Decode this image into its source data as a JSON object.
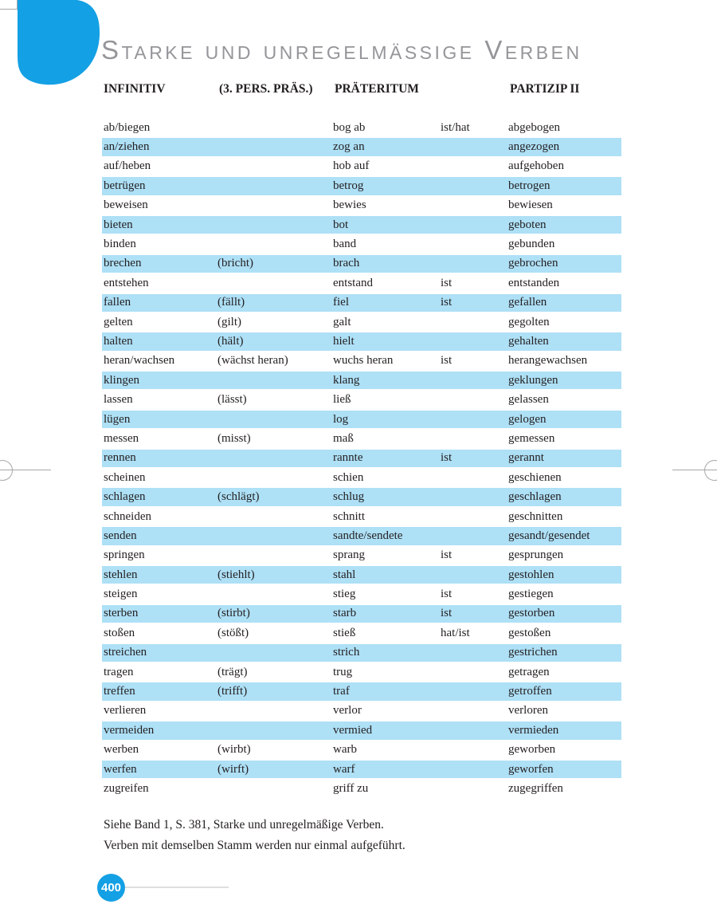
{
  "page": {
    "title": "Starke und unregelmässige Verben",
    "page_number": "400",
    "note_line1": "Siehe Band 1, S. 381, Starke und unregelmäßige Verben.",
    "note_line2": "Verben mit demselben Stamm werden nur einmal aufgeführt.",
    "colors": {
      "accent_blue": "#14a0e4",
      "row_band_blue": "#aee0f6",
      "title_gray": "#95959a",
      "text_ink": "#231f20"
    }
  },
  "table": {
    "headers": {
      "infinitiv": "INFINITIV",
      "praesens": "(3. PERS. PRÄS.)",
      "praeteritum": "PRÄTERITUM",
      "partizip": "PARTIZIP II"
    },
    "rows": [
      {
        "infinitiv": "ab/biegen",
        "praesens": "",
        "praeteritum": "bog ab",
        "aux": "ist/hat",
        "partizip": "abgebogen"
      },
      {
        "infinitiv": "an/ziehen",
        "praesens": "",
        "praeteritum": "zog an",
        "aux": "",
        "partizip": "angezogen"
      },
      {
        "infinitiv": "auf/heben",
        "praesens": "",
        "praeteritum": "hob auf",
        "aux": "",
        "partizip": "aufgehoben"
      },
      {
        "infinitiv": "betrügen",
        "praesens": "",
        "praeteritum": "betrog",
        "aux": "",
        "partizip": "betrogen"
      },
      {
        "infinitiv": "beweisen",
        "praesens": "",
        "praeteritum": "bewies",
        "aux": "",
        "partizip": "bewiesen"
      },
      {
        "infinitiv": "bieten",
        "praesens": "",
        "praeteritum": "bot",
        "aux": "",
        "partizip": "geboten"
      },
      {
        "infinitiv": "binden",
        "praesens": "",
        "praeteritum": "band",
        "aux": "",
        "partizip": "gebunden"
      },
      {
        "infinitiv": "brechen",
        "praesens": "(bricht)",
        "praeteritum": "brach",
        "aux": "",
        "partizip": "gebrochen"
      },
      {
        "infinitiv": "entstehen",
        "praesens": "",
        "praeteritum": "entstand",
        "aux": "ist",
        "partizip": "entstanden"
      },
      {
        "infinitiv": "fallen",
        "praesens": "(fällt)",
        "praeteritum": "fiel",
        "aux": "ist",
        "partizip": "gefallen"
      },
      {
        "infinitiv": "gelten",
        "praesens": "(gilt)",
        "praeteritum": "galt",
        "aux": "",
        "partizip": "gegolten"
      },
      {
        "infinitiv": "halten",
        "praesens": "(hält)",
        "praeteritum": "hielt",
        "aux": "",
        "partizip": "gehalten"
      },
      {
        "infinitiv": "heran/wachsen",
        "praesens": "(wächst heran)",
        "praeteritum": "wuchs heran",
        "aux": "ist",
        "partizip": "herangewachsen"
      },
      {
        "infinitiv": "klingen",
        "praesens": "",
        "praeteritum": "klang",
        "aux": "",
        "partizip": "geklungen"
      },
      {
        "infinitiv": "lassen",
        "praesens": "(lässt)",
        "praeteritum": "ließ",
        "aux": "",
        "partizip": "gelassen"
      },
      {
        "infinitiv": "lügen",
        "praesens": "",
        "praeteritum": "log",
        "aux": "",
        "partizip": "gelogen"
      },
      {
        "infinitiv": "messen",
        "praesens": "(misst)",
        "praeteritum": "maß",
        "aux": "",
        "partizip": "gemessen"
      },
      {
        "infinitiv": "rennen",
        "praesens": "",
        "praeteritum": "rannte",
        "aux": "ist",
        "partizip": "gerannt"
      },
      {
        "infinitiv": "scheinen",
        "praesens": "",
        "praeteritum": "schien",
        "aux": "",
        "partizip": "geschienen"
      },
      {
        "infinitiv": "schlagen",
        "praesens": "(schlägt)",
        "praeteritum": "schlug",
        "aux": "",
        "partizip": "geschlagen"
      },
      {
        "infinitiv": "schneiden",
        "praesens": "",
        "praeteritum": "schnitt",
        "aux": "",
        "partizip": "geschnitten"
      },
      {
        "infinitiv": "senden",
        "praesens": "",
        "praeteritum": "sandte/sendete",
        "aux": "",
        "partizip": "gesandt/gesendet"
      },
      {
        "infinitiv": "springen",
        "praesens": "",
        "praeteritum": "sprang",
        "aux": "ist",
        "partizip": "gesprungen"
      },
      {
        "infinitiv": "stehlen",
        "praesens": "(stiehlt)",
        "praeteritum": "stahl",
        "aux": "",
        "partizip": "gestohlen"
      },
      {
        "infinitiv": "steigen",
        "praesens": "",
        "praeteritum": "stieg",
        "aux": "ist",
        "partizip": "gestiegen"
      },
      {
        "infinitiv": "sterben",
        "praesens": "(stirbt)",
        "praeteritum": "starb",
        "aux": "ist",
        "partizip": "gestorben"
      },
      {
        "infinitiv": "stoßen",
        "praesens": "(stößt)",
        "praeteritum": "stieß",
        "aux": "hat/ist",
        "partizip": "gestoßen"
      },
      {
        "infinitiv": "streichen",
        "praesens": "",
        "praeteritum": "strich",
        "aux": "",
        "partizip": "gestrichen"
      },
      {
        "infinitiv": "tragen",
        "praesens": "(trägt)",
        "praeteritum": "trug",
        "aux": "",
        "partizip": "getragen"
      },
      {
        "infinitiv": "treffen",
        "praesens": "(trifft)",
        "praeteritum": "traf",
        "aux": "",
        "partizip": "getroffen"
      },
      {
        "infinitiv": "verlieren",
        "praesens": "",
        "praeteritum": "verlor",
        "aux": "",
        "partizip": "verloren"
      },
      {
        "infinitiv": "vermeiden",
        "praesens": "",
        "praeteritum": "vermied",
        "aux": "",
        "partizip": "vermieden"
      },
      {
        "infinitiv": "werben",
        "praesens": "(wirbt)",
        "praeteritum": "warb",
        "aux": "",
        "partizip": "geworben"
      },
      {
        "infinitiv": "werfen",
        "praesens": "(wirft)",
        "praeteritum": "warf",
        "aux": "",
        "partizip": "geworfen"
      },
      {
        "infinitiv": "zugreifen",
        "praesens": "",
        "praeteritum": "griff zu",
        "aux": "",
        "partizip": "zugegriffen"
      }
    ]
  }
}
